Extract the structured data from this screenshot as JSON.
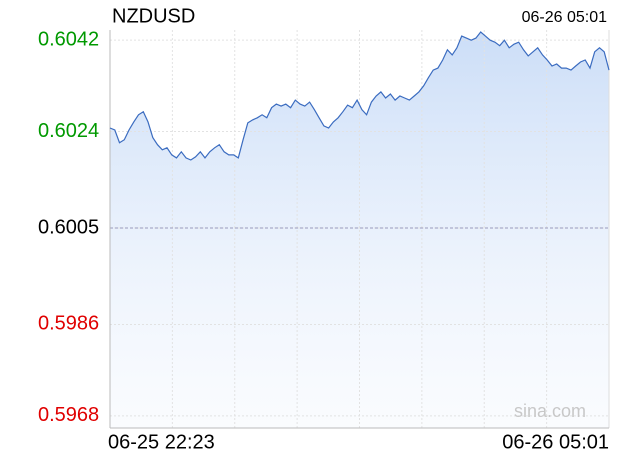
{
  "chart_data": {
    "type": "line",
    "title": "NZDUSD",
    "timestamp": "06-26 05:01",
    "x_labels": [
      "06-25 22:23",
      "06-26 05:01"
    ],
    "watermark": "sina.com",
    "ylim": [
      0.59656,
      0.6044
    ],
    "yticks": [
      0.5968,
      0.5986,
      0.6005,
      0.6024,
      0.6042
    ],
    "baseline": 0.6005,
    "up_color": "#009900",
    "down_color": "#e00000",
    "flat_color": "#000000",
    "grid": true,
    "series": [
      {
        "name": "NZDUSD",
        "color": "#3b6cc0",
        "values": [
          0.60247,
          0.60243,
          0.60218,
          0.60224,
          0.60243,
          0.60259,
          0.60273,
          0.60279,
          0.60259,
          0.60228,
          0.60214,
          0.60204,
          0.60208,
          0.60194,
          0.60188,
          0.602,
          0.60188,
          0.60184,
          0.6019,
          0.602,
          0.60188,
          0.602,
          0.60208,
          0.60214,
          0.602,
          0.60194,
          0.60194,
          0.60188,
          0.60224,
          0.60257,
          0.60263,
          0.60267,
          0.60273,
          0.60267,
          0.60287,
          0.60294,
          0.6029,
          0.60294,
          0.60287,
          0.60302,
          0.60294,
          0.6029,
          0.60298,
          0.60283,
          0.60267,
          0.60251,
          0.60247,
          0.60259,
          0.60267,
          0.60279,
          0.60292,
          0.60287,
          0.60302,
          0.60283,
          0.60273,
          0.60298,
          0.6031,
          0.60318,
          0.60306,
          0.60314,
          0.60302,
          0.6031,
          0.60306,
          0.60302,
          0.6031,
          0.60318,
          0.6033,
          0.60346,
          0.60361,
          0.60365,
          0.60381,
          0.60401,
          0.60391,
          0.60405,
          0.60428,
          0.60424,
          0.6042,
          0.60424,
          0.60436,
          0.60428,
          0.6042,
          0.60416,
          0.60409,
          0.6042,
          0.60405,
          0.60412,
          0.60416,
          0.60401,
          0.60389,
          0.60397,
          0.60405,
          0.60391,
          0.60381,
          0.60369,
          0.60373,
          0.60365,
          0.60365,
          0.60361,
          0.60369,
          0.60377,
          0.60381,
          0.60365,
          0.60397,
          0.60405,
          0.60397,
          0.60361
        ]
      }
    ]
  }
}
